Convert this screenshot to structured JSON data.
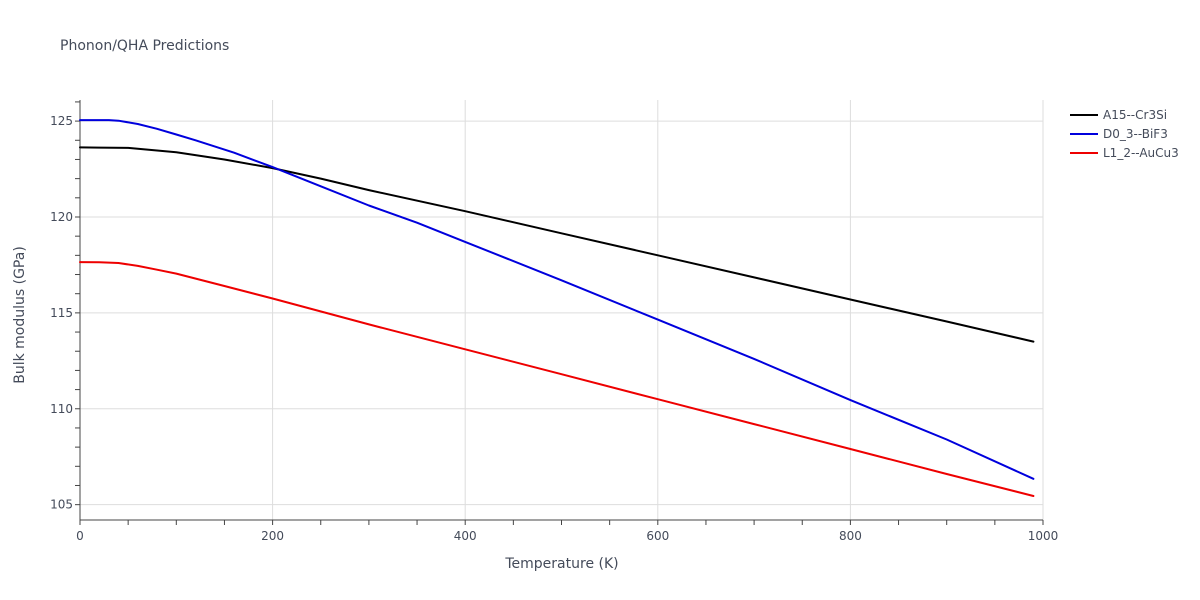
{
  "chart_data": {
    "type": "line",
    "title": "Phonon/QHA Predictions",
    "xlabel": "Temperature (K)",
    "ylabel": "Bulk modulus (GPa)",
    "xlim": [
      0,
      1000
    ],
    "ylim": [
      104.2,
      126.1
    ],
    "x_ticks": [
      0,
      200,
      400,
      600,
      800,
      1000
    ],
    "x_tick_labels": [
      "0",
      "200",
      "400",
      "600",
      "800",
      "1000"
    ],
    "y_ticks": [
      105,
      110,
      115,
      120,
      125
    ],
    "y_tick_labels": [
      "105",
      "110",
      "115",
      "120",
      "125"
    ],
    "grid": true,
    "legend_position": "top-right",
    "series": [
      {
        "name": "A15--Cr3Si",
        "color": "#000000",
        "x": [
          0,
          20,
          50,
          60,
          100,
          150,
          200,
          250,
          300,
          400,
          500,
          600,
          700,
          800,
          900,
          990
        ],
        "y": [
          123.63,
          123.62,
          123.6,
          123.56,
          123.38,
          123.0,
          122.55,
          122.0,
          121.4,
          120.3,
          119.15,
          118.0,
          116.85,
          115.7,
          114.55,
          113.5
        ]
      },
      {
        "name": "D0_3--BiF3",
        "color": "#0000dd",
        "x": [
          0,
          30,
          40,
          60,
          80,
          100,
          120,
          160,
          200,
          250,
          300,
          350,
          400,
          500,
          600,
          700,
          800,
          900,
          990
        ],
        "y": [
          125.05,
          125.05,
          125.02,
          124.85,
          124.6,
          124.3,
          124.0,
          123.35,
          122.6,
          121.6,
          120.6,
          119.7,
          118.7,
          116.7,
          114.65,
          112.6,
          110.45,
          108.4,
          106.35
        ]
      },
      {
        "name": "L1_2--AuCu3",
        "color": "#ee0000",
        "x": [
          0,
          20,
          40,
          60,
          80,
          100,
          150,
          200,
          300,
          400,
          500,
          600,
          700,
          800,
          900,
          990
        ],
        "y": [
          117.65,
          117.64,
          117.6,
          117.45,
          117.25,
          117.05,
          116.4,
          115.75,
          114.4,
          113.1,
          111.8,
          110.5,
          109.2,
          107.9,
          106.6,
          105.45
        ]
      }
    ]
  }
}
